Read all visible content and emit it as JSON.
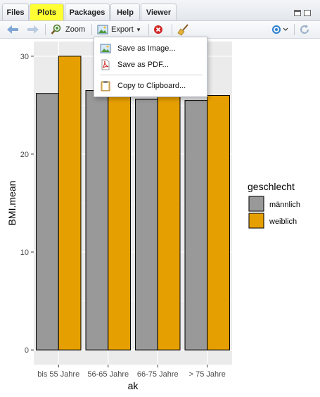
{
  "tabs": [
    {
      "label": "Files"
    },
    {
      "label": "Plots"
    },
    {
      "label": "Packages"
    },
    {
      "label": "Help"
    },
    {
      "label": "Viewer"
    }
  ],
  "toolbar": {
    "zoom_label": "Zoom",
    "export_label": "Export",
    "export_arrow": "▾"
  },
  "export_menu": {
    "items": [
      {
        "label": "Save as Image..."
      },
      {
        "label": "Save as PDF..."
      },
      {
        "label": "Copy to Clipboard..."
      }
    ]
  },
  "colors": {
    "highlight": "#ffff33",
    "panel_bg": "#ebebeb",
    "grid": "#ffffff",
    "maennlich": "#999999",
    "weiblich": "#e69f00"
  },
  "chart_data": {
    "type": "bar",
    "title": "",
    "xlabel": "ak",
    "ylabel": "BMI.mean",
    "categories": [
      "bis 55 Jahre",
      "56-65 Jahre",
      "66-75 Jahre",
      "> 75 Jahre"
    ],
    "series": [
      {
        "name": "männlich",
        "values": [
          26.2,
          26.5,
          25.6,
          25.5
        ]
      },
      {
        "name": "weiblich",
        "values": [
          30.0,
          26.0,
          26.0,
          26.0
        ]
      }
    ],
    "ylim": [
      -1.5,
      31.5
    ],
    "yticks": [
      0,
      10,
      20,
      30
    ],
    "ytick_labels": [
      "0",
      "10",
      "20",
      "30"
    ],
    "grid": true,
    "legend": {
      "title": "geschlecht",
      "position": "right"
    }
  }
}
